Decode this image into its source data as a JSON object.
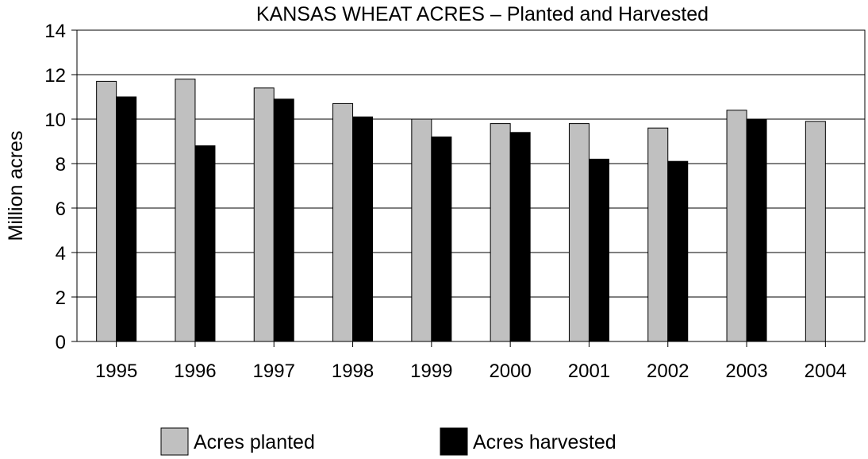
{
  "chart_data": {
    "type": "bar",
    "title": "KANSAS WHEAT ACRES – Planted and Harvested",
    "xlabel": "",
    "ylabel": "Million acres",
    "ylim": [
      0,
      14
    ],
    "yticks": [
      0,
      2,
      4,
      6,
      8,
      10,
      12,
      14
    ],
    "grid": true,
    "legend_position": "bottom",
    "categories": [
      "1995",
      "1996",
      "1997",
      "1998",
      "1999",
      "2000",
      "2001",
      "2002",
      "2003",
      "2004"
    ],
    "series": [
      {
        "name": "Acres planted",
        "color": "#c0c0c0",
        "values": [
          11.7,
          11.8,
          11.4,
          10.7,
          10.0,
          9.8,
          9.8,
          9.6,
          10.4,
          9.9
        ]
      },
      {
        "name": "Acres harvested",
        "color": "#000000",
        "values": [
          11.0,
          8.8,
          10.9,
          10.1,
          9.2,
          9.4,
          8.2,
          8.1,
          10.0,
          null
        ]
      }
    ]
  }
}
